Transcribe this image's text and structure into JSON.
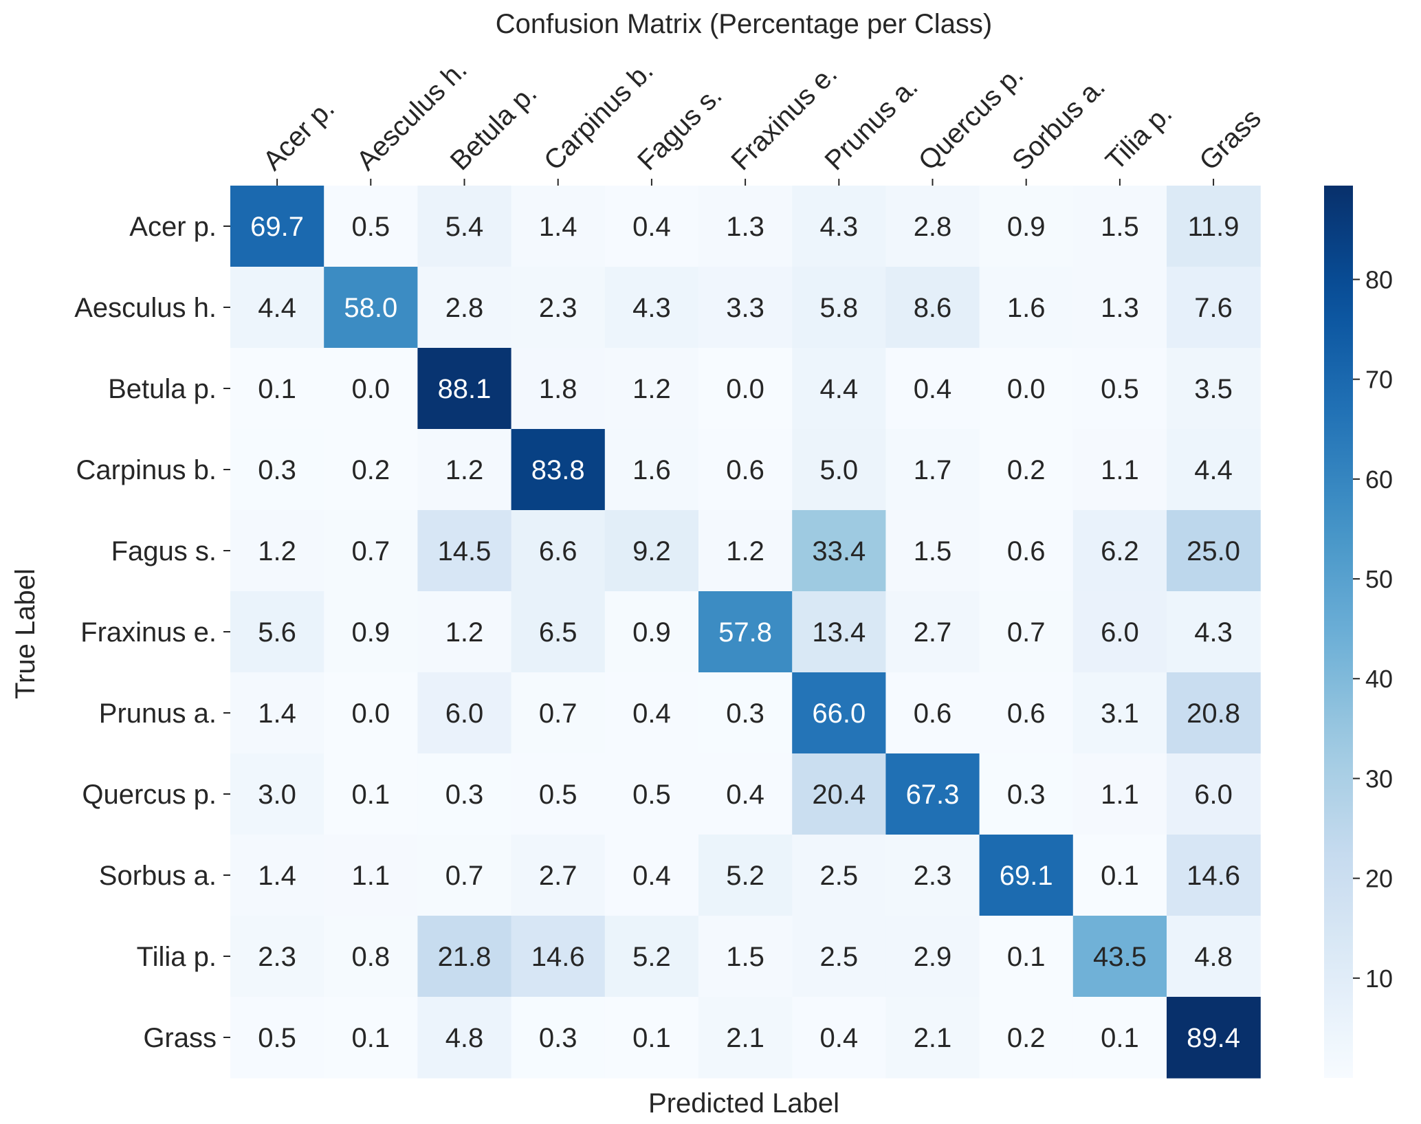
{
  "chart_data": {
    "type": "heatmap",
    "title": "Confusion Matrix (Percentage per Class)",
    "xlabel": "Predicted Label",
    "ylabel": "True Label",
    "x_categories": [
      "Acer p.",
      "Aesculus h.",
      "Betula p.",
      "Carpinus b.",
      "Fagus s.",
      "Fraxinus e.",
      "Prunus a.",
      "Quercus p.",
      "Sorbus a.",
      "Tilia p.",
      "Grass"
    ],
    "y_categories": [
      "Acer p.",
      "Aesculus h.",
      "Betula p.",
      "Carpinus b.",
      "Fagus s.",
      "Fraxinus e.",
      "Prunus a.",
      "Quercus p.",
      "Sorbus a.",
      "Tilia p.",
      "Grass"
    ],
    "values": [
      [
        69.7,
        0.5,
        5.4,
        1.4,
        0.4,
        1.3,
        4.3,
        2.8,
        0.9,
        1.5,
        11.9
      ],
      [
        4.4,
        58.0,
        2.8,
        2.3,
        4.3,
        3.3,
        5.8,
        8.6,
        1.6,
        1.3,
        7.6
      ],
      [
        0.1,
        0.0,
        88.1,
        1.8,
        1.2,
        0.0,
        4.4,
        0.4,
        0.0,
        0.5,
        3.5
      ],
      [
        0.3,
        0.2,
        1.2,
        83.8,
        1.6,
        0.6,
        5.0,
        1.7,
        0.2,
        1.1,
        4.4
      ],
      [
        1.2,
        0.7,
        14.5,
        6.6,
        9.2,
        1.2,
        33.4,
        1.5,
        0.6,
        6.2,
        25.0
      ],
      [
        5.6,
        0.9,
        1.2,
        6.5,
        0.9,
        57.8,
        13.4,
        2.7,
        0.7,
        6.0,
        4.3
      ],
      [
        1.4,
        0.0,
        6.0,
        0.7,
        0.4,
        0.3,
        66.0,
        0.6,
        0.6,
        3.1,
        20.8
      ],
      [
        3.0,
        0.1,
        0.3,
        0.5,
        0.5,
        0.4,
        20.4,
        67.3,
        0.3,
        1.1,
        6.0
      ],
      [
        1.4,
        1.1,
        0.7,
        2.7,
        0.4,
        5.2,
        2.5,
        2.3,
        69.1,
        0.1,
        14.6
      ],
      [
        2.3,
        0.8,
        21.8,
        14.6,
        5.2,
        1.5,
        2.5,
        2.9,
        0.1,
        43.5,
        4.8
      ],
      [
        0.5,
        0.1,
        4.8,
        0.3,
        0.1,
        2.1,
        0.4,
        2.1,
        0.2,
        0.1,
        89.4
      ]
    ],
    "value_format": "one decimal",
    "colormap": "Blues",
    "colorbar": {
      "range": [
        0.0,
        89.4
      ],
      "ticks": [
        10,
        20,
        30,
        40,
        50,
        60,
        70,
        80
      ],
      "tick_labels": [
        "10",
        "20",
        "30",
        "40",
        "50",
        "60",
        "70",
        "80"
      ]
    },
    "grid": false
  }
}
